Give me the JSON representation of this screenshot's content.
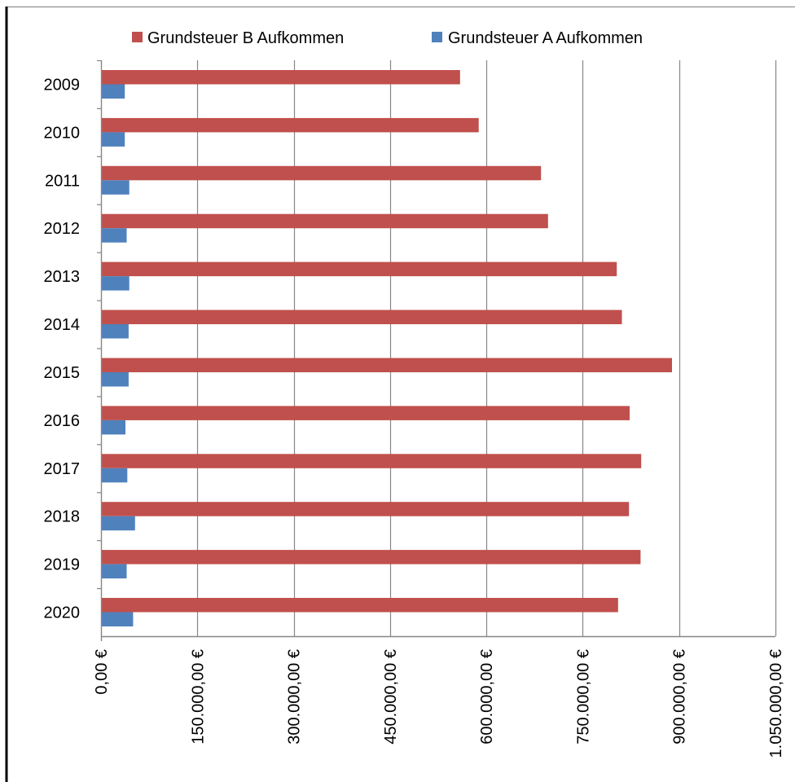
{
  "chart_data": {
    "type": "bar",
    "orientation": "horizontal",
    "categories": [
      "2009",
      "2010",
      "2011",
      "2012",
      "2013",
      "2014",
      "2015",
      "2016",
      "2017",
      "2018",
      "2019",
      "2020"
    ],
    "series": [
      {
        "name": "Grundsteuer B Aufkommen",
        "color": "#C0504D",
        "values": [
          559000,
          588000,
          685000,
          696000,
          803000,
          811000,
          889000,
          823000,
          841000,
          822000,
          840000,
          805000
        ]
      },
      {
        "name": "Grundsteuer A Aufkommen",
        "color": "#4F81BD",
        "values": [
          37000,
          37000,
          44000,
          40000,
          44000,
          43000,
          43000,
          38000,
          41000,
          53000,
          40000,
          50000
        ]
      }
    ],
    "xlim": [
      0,
      1050000
    ],
    "xticks": [
      0,
      150000,
      300000,
      450000,
      600000,
      750000,
      900000,
      1050000
    ],
    "xtick_labels": [
      "0,00 €",
      "150.000,00 €",
      "300.000,00 €",
      "450.000,00 €",
      "600.000,00 €",
      "750.000,00 €",
      "900.000,00 €",
      "1.050.000,00 €"
    ],
    "grid": "vertical",
    "legend": "top"
  }
}
